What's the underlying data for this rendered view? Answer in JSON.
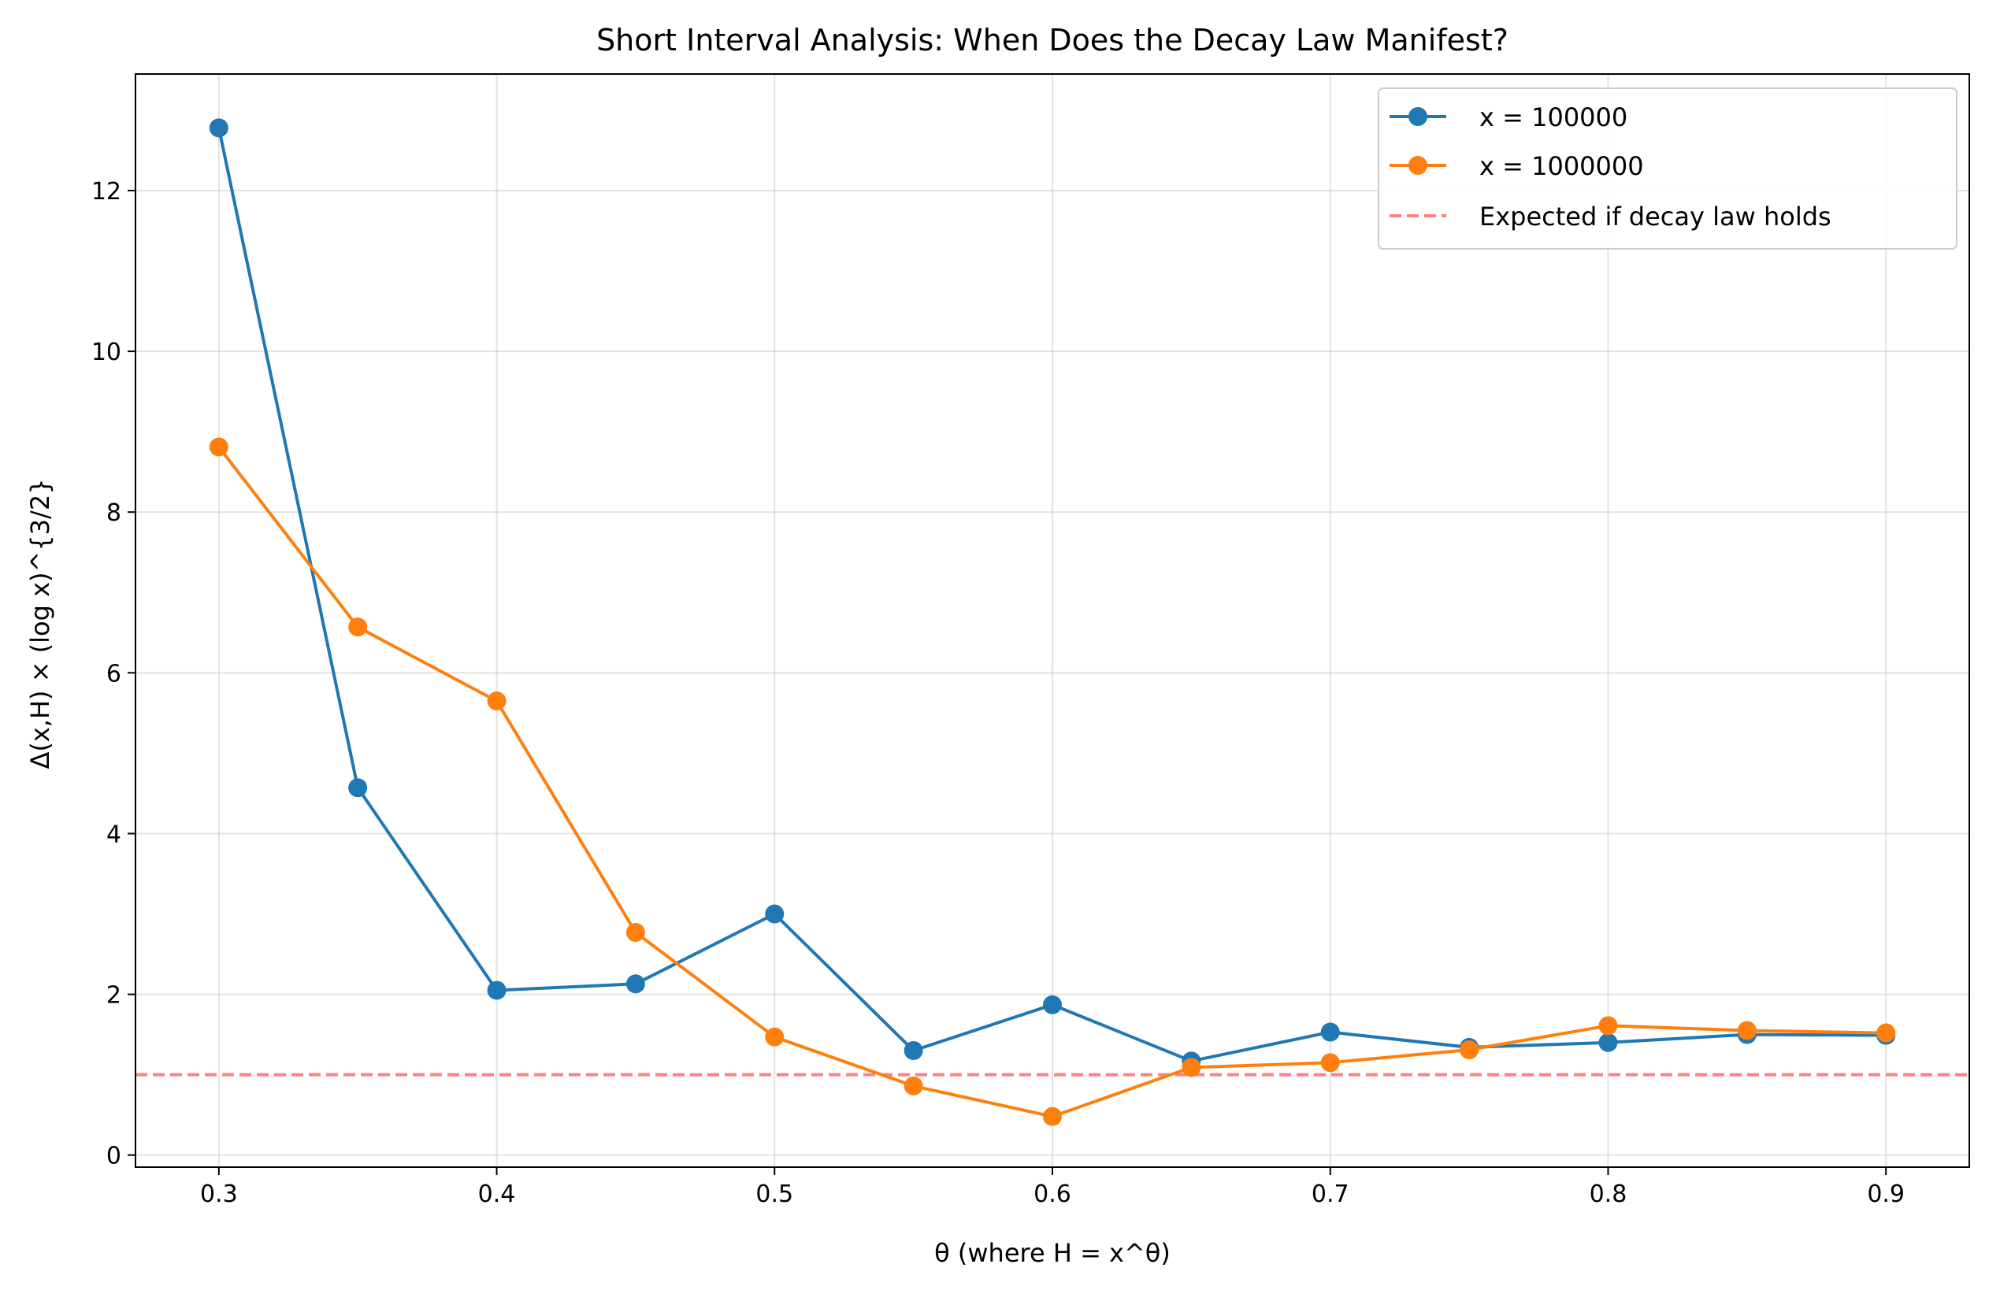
{
  "chart_data": {
    "type": "line",
    "title": "Short Interval Analysis: When Does the Decay Law Manifest?",
    "xlabel": "θ (where H = x^θ)",
    "ylabel": "Δ(x,H) × (log x)^{3/2}",
    "xlim": [
      0.27,
      0.93
    ],
    "ylim": [
      -0.15,
      13.45
    ],
    "x_ticks": [
      0.3,
      0.4,
      0.5,
      0.6,
      0.7,
      0.8,
      0.9
    ],
    "x_tick_labels": [
      "0.3",
      "0.4",
      "0.5",
      "0.6",
      "0.7",
      "0.8",
      "0.9"
    ],
    "y_ticks": [
      0,
      2,
      4,
      6,
      8,
      10,
      12
    ],
    "y_tick_labels": [
      "0",
      "2",
      "4",
      "6",
      "8",
      "10",
      "12"
    ],
    "grid": true,
    "legend_position": "top-right",
    "x": [
      0.3,
      0.35,
      0.4,
      0.45,
      0.5,
      0.55,
      0.6,
      0.65,
      0.7,
      0.75,
      0.8,
      0.85,
      0.9
    ],
    "series": [
      {
        "name": "x = 100000",
        "color": "#1f77b4",
        "values": [
          12.78,
          4.57,
          2.05,
          2.13,
          3.0,
          1.3,
          1.87,
          1.17,
          1.53,
          1.34,
          1.4,
          1.5,
          1.49
        ]
      },
      {
        "name": "x = 1000000",
        "color": "#ff7f0e",
        "values": [
          8.81,
          6.57,
          5.65,
          2.77,
          1.47,
          0.86,
          0.48,
          1.09,
          1.15,
          1.31,
          1.61,
          1.55,
          1.52
        ]
      }
    ],
    "reference_line": {
      "name": "Expected if decay law holds",
      "y": 1.0,
      "color": "#ff8080",
      "style": "dashed"
    }
  }
}
